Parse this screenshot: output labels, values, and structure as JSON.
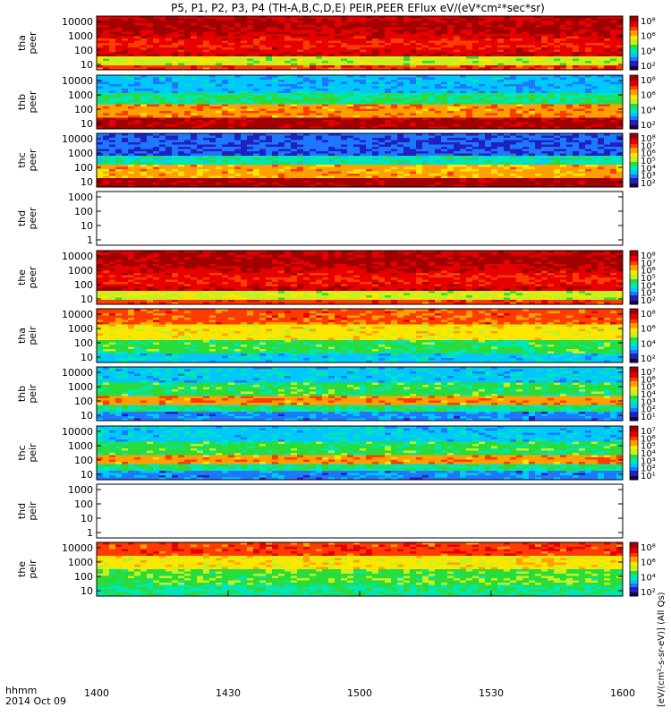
{
  "title": "P5, P1, P2, P3, P4 (TH-A,B,C,D,E) PEIR,PEER EFlux eV/(eV*cm²*sec*sr)",
  "x_label_line1": "hhmm",
  "x_label_line2": "2014 Oct 09",
  "colorbar_label": "[eV/(cm²-s-sr-eV)] (All Qs)",
  "chart_data": {
    "type": "heatmap",
    "x_ticks": [
      "1400",
      "1430",
      "1500",
      "1530",
      "1600"
    ],
    "x_range": [
      "14:00",
      "16:00"
    ],
    "panels": [
      {
        "id": "tha-peer",
        "label": [
          "tha",
          "peer"
        ],
        "y_ticks": [
          "10000",
          "1000",
          "100",
          "10"
        ],
        "y_range": [
          10,
          25000
        ],
        "y_scale": "log",
        "colorbar_ticks": [
          "10⁸",
          "10⁶",
          "10⁴",
          "10²"
        ],
        "has_data": true,
        "profile": "hot-electron"
      },
      {
        "id": "thb-peer",
        "label": [
          "thb",
          "peer"
        ],
        "y_ticks": [
          "10000",
          "1000",
          "100",
          "10"
        ],
        "y_range": [
          10,
          25000
        ],
        "y_scale": "log",
        "colorbar_ticks": [
          "10⁸",
          "10⁶",
          "10⁴",
          "10²"
        ],
        "has_data": true,
        "profile": "cold-electron"
      },
      {
        "id": "thc-peer",
        "label": [
          "thc",
          "peer"
        ],
        "y_ticks": [
          "10000",
          "1000",
          "100",
          "10"
        ],
        "y_range": [
          10,
          25000
        ],
        "y_scale": "log",
        "colorbar_ticks": [
          "10⁸",
          "10⁷",
          "10⁶",
          "10⁵",
          "10⁴",
          "10³",
          "10²"
        ],
        "has_data": true,
        "profile": "cold-electron-blue"
      },
      {
        "id": "thd-peer",
        "label": [
          "thd",
          "peer"
        ],
        "y_ticks": [
          "1000",
          "100",
          "10",
          "1"
        ],
        "y_range": [
          1,
          2500
        ],
        "y_scale": "log",
        "colorbar_ticks": [],
        "has_data": false
      },
      {
        "id": "the-peer",
        "label": [
          "the",
          "peer"
        ],
        "y_ticks": [
          "10000",
          "1000",
          "100",
          "10"
        ],
        "y_range": [
          10,
          25000
        ],
        "y_scale": "log",
        "colorbar_ticks": [
          "10⁸",
          "10⁷",
          "10⁶",
          "10⁵",
          "10⁴",
          "10³",
          "10²"
        ],
        "has_data": true,
        "profile": "hot-electron"
      },
      {
        "id": "tha-peir",
        "label": [
          "tha",
          "peir"
        ],
        "y_ticks": [
          "10000",
          "1000",
          "100",
          "10"
        ],
        "y_range": [
          10,
          25000
        ],
        "y_scale": "log",
        "colorbar_ticks": [
          "10⁸",
          "10⁶",
          "10⁴",
          "10²"
        ],
        "has_data": true,
        "profile": "hot-ion"
      },
      {
        "id": "thb-peir",
        "label": [
          "thb",
          "peir"
        ],
        "y_ticks": [
          "10000",
          "1000",
          "100",
          "10"
        ],
        "y_range": [
          10,
          25000
        ],
        "y_scale": "log",
        "colorbar_ticks": [
          "10⁷",
          "10⁶",
          "10⁵",
          "10⁴",
          "10³",
          "10²",
          "10¹"
        ],
        "has_data": true,
        "profile": "cold-ion"
      },
      {
        "id": "thc-peir",
        "label": [
          "thc",
          "peir"
        ],
        "y_ticks": [
          "10000",
          "1000",
          "100",
          "10"
        ],
        "y_range": [
          10,
          25000
        ],
        "y_scale": "log",
        "colorbar_ticks": [
          "10⁷",
          "10⁶",
          "10⁵",
          "10⁴",
          "10³",
          "10²",
          "10¹"
        ],
        "has_data": true,
        "profile": "cold-ion"
      },
      {
        "id": "thd-peir",
        "label": [
          "thd",
          "peir"
        ],
        "y_ticks": [
          "1000",
          "100",
          "10",
          "1"
        ],
        "y_range": [
          1,
          2500
        ],
        "y_scale": "log",
        "colorbar_ticks": [],
        "has_data": false
      },
      {
        "id": "the-peir",
        "label": [
          "the",
          "peir"
        ],
        "y_ticks": [
          "10000",
          "1000",
          "100",
          "10"
        ],
        "y_range": [
          10,
          25000
        ],
        "y_scale": "log",
        "colorbar_ticks": [
          "10⁸",
          "10⁶",
          "10⁴",
          "10²"
        ],
        "has_data": true,
        "profile": "hot-ion-green"
      }
    ],
    "colormap": [
      "#1a0040",
      "#2020c0",
      "#1e78ff",
      "#00c8ff",
      "#00e6b4",
      "#28dc3c",
      "#c8f01e",
      "#ffe600",
      "#ffa000",
      "#ff3c00",
      "#e60000",
      "#a00000"
    ]
  }
}
